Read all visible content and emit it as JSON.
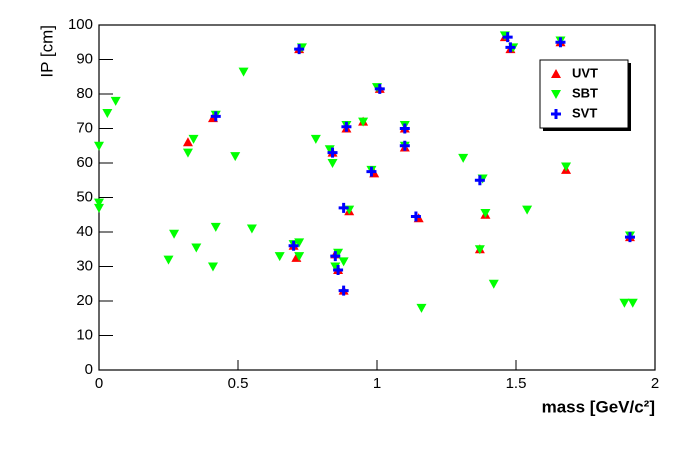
{
  "chart_data": {
    "type": "scatter",
    "x_label": "mass [GeV/c²]",
    "y_label": "IP [cm]",
    "xlim": [
      0,
      2
    ],
    "ylim": [
      0,
      100
    ],
    "xticks": [
      0,
      0.5,
      1,
      1.5,
      2
    ],
    "yticks": [
      0,
      10,
      20,
      30,
      40,
      50,
      60,
      70,
      80,
      90,
      100
    ],
    "legend": "top-right",
    "series": [
      {
        "name": "UVT",
        "color": "#ff0000",
        "marker": "triangle-up",
        "x": [
          0.32,
          0.41,
          0.71,
          0.7,
          0.72,
          0.84,
          0.85,
          0.86,
          0.88,
          0.89,
          0.9,
          0.95,
          0.99,
          1.01,
          1.1,
          1.1,
          1.15,
          1.37,
          1.39,
          1.46,
          1.48,
          1.66,
          1.68,
          1.91
        ],
        "values": [
          66,
          73,
          32.5,
          36,
          93,
          63,
          33.5,
          29,
          23,
          70,
          46,
          72,
          57,
          81.5,
          64.5,
          70,
          44,
          35,
          45,
          96.5,
          93,
          95,
          58,
          38.5
        ]
      },
      {
        "name": "SBT",
        "color": "#00ff00",
        "marker": "triangle-down",
        "x": [
          0,
          0,
          0,
          0.03,
          0.06,
          0.25,
          0.27,
          0.32,
          0.34,
          0.35,
          0.41,
          0.42,
          0.42,
          0.49,
          0.52,
          0.55,
          0.65,
          0.7,
          0.72,
          0.72,
          0.73,
          0.78,
          0.83,
          0.84,
          0.85,
          0.86,
          0.88,
          0.89,
          0.9,
          0.95,
          0.98,
          1.0,
          1.1,
          1.1,
          1.16,
          1.31,
          1.37,
          1.38,
          1.39,
          1.42,
          1.46,
          1.49,
          1.54,
          1.66,
          1.68,
          1.89,
          1.92,
          1.91
        ],
        "values": [
          65,
          48.5,
          47,
          74.5,
          78,
          32,
          39.5,
          63,
          67,
          35.5,
          30,
          41.5,
          74,
          62,
          86.5,
          41,
          33,
          36.5,
          37,
          33,
          93.5,
          67,
          64,
          60,
          30,
          34,
          31.5,
          71,
          46.5,
          72,
          58,
          82,
          71,
          65,
          18,
          61.5,
          35,
          55.5,
          45.5,
          25,
          97,
          93.5,
          46.5,
          95.5,
          59,
          19.5,
          19.5,
          39
        ]
      },
      {
        "name": "SVT",
        "color": "#0000ff",
        "marker": "plus",
        "x": [
          0.42,
          0.7,
          0.72,
          0.84,
          0.85,
          0.86,
          0.88,
          0.88,
          0.89,
          0.98,
          1.01,
          1.1,
          1.1,
          1.14,
          1.37,
          1.47,
          1.48,
          1.66,
          1.91
        ],
        "values": [
          73.5,
          36,
          93,
          63,
          33,
          29,
          23,
          47,
          70.5,
          57.5,
          81.5,
          65,
          70,
          44.5,
          55,
          96.5,
          93.5,
          95,
          38.5
        ]
      }
    ]
  }
}
